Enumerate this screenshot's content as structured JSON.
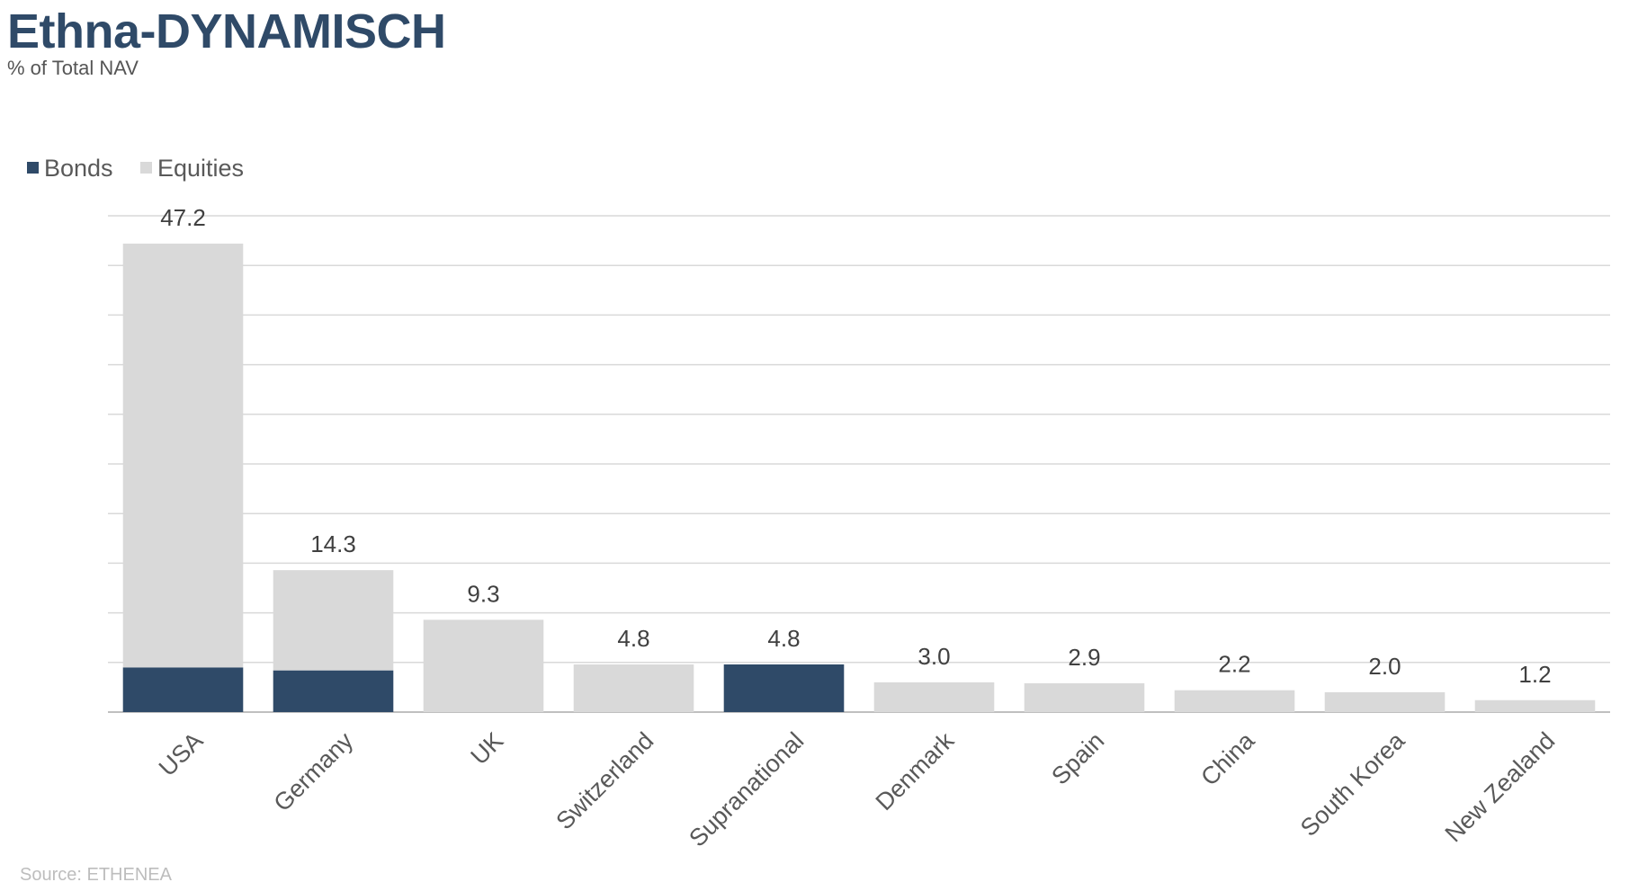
{
  "header": {
    "title": "Ethna-DYNAMISCH",
    "subtitle": "% of Total NAV"
  },
  "footer": {
    "source": "Source: ETHENEA"
  },
  "colors": {
    "bonds": "#2f4a68",
    "equities": "#d9d9d9",
    "grid": "#d9d9d9",
    "axis": "#bfbfbf",
    "label": "#404040"
  },
  "chart_data": {
    "type": "bar",
    "stacked": true,
    "categories": [
      "USA",
      "Germany",
      "UK",
      "Switzerland",
      "Supranational",
      "Denmark",
      "Spain",
      "China",
      "South Korea",
      "New Zealand"
    ],
    "series": [
      {
        "name": "Bonds",
        "values": [
          4.5,
          4.2,
          0,
          0,
          4.8,
          0,
          0,
          0,
          0,
          0
        ]
      },
      {
        "name": "Equities",
        "values": [
          42.7,
          10.1,
          9.3,
          4.8,
          0,
          3.0,
          2.9,
          2.2,
          2.0,
          1.2
        ]
      }
    ],
    "totals": [
      "47.2",
      "14.3",
      "9.3",
      "4.8",
      "4.8",
      "3.0",
      "2.9",
      "2.2",
      "2.0",
      "1.2"
    ],
    "ylim": [
      0,
      50
    ],
    "grid_step": 5,
    "grid": true,
    "legend_position": "top-left"
  }
}
